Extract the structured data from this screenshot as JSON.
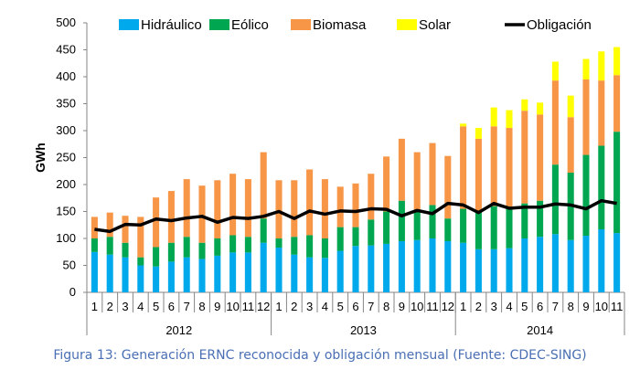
{
  "chart_data": {
    "type": "bar",
    "stacked": true,
    "title": "",
    "xlabel": "",
    "ylabel": "GWh",
    "ylim": [
      0,
      500
    ],
    "yticks": [
      0,
      50,
      100,
      150,
      200,
      250,
      300,
      350,
      400,
      450,
      500
    ],
    "grid": false,
    "legend_position": "top",
    "groups": [
      {
        "label": "2012",
        "months": [
          "1",
          "2",
          "3",
          "4",
          "5",
          "6",
          "7",
          "8",
          "9",
          "10",
          "11",
          "12"
        ]
      },
      {
        "label": "2013",
        "months": [
          "1",
          "2",
          "3",
          "4",
          "5",
          "6",
          "7",
          "8",
          "9",
          "10",
          "11",
          "12"
        ]
      },
      {
        "label": "2014",
        "months": [
          "1",
          "2",
          "3",
          "4",
          "5",
          "6",
          "7",
          "8",
          "9",
          "10",
          "11"
        ]
      }
    ],
    "series": [
      {
        "name": "Hidráulico",
        "color": "#00a9ec",
        "kind": "bar",
        "values": [
          75,
          70,
          65,
          50,
          48,
          57,
          65,
          62,
          68,
          74,
          74,
          92,
          83,
          70,
          65,
          64,
          77,
          86,
          87,
          90,
          95,
          97,
          100,
          95,
          92,
          80,
          80,
          82,
          100,
          103,
          108,
          97,
          105,
          117,
          110
        ]
      },
      {
        "name": "Eólico",
        "color": "#00a650",
        "kind": "bar",
        "values": [
          25,
          33,
          27,
          15,
          36,
          35,
          38,
          30,
          32,
          32,
          29,
          45,
          17,
          33,
          41,
          36,
          44,
          35,
          48,
          60,
          75,
          53,
          62,
          42,
          63,
          70,
          80,
          73,
          65,
          67,
          129,
          125,
          150,
          155,
          188
        ]
      },
      {
        "name": "Biomasa",
        "color": "#f79646",
        "kind": "bar",
        "values": [
          40,
          45,
          50,
          75,
          92,
          96,
          107,
          106,
          108,
          114,
          107,
          123,
          108,
          105,
          122,
          110,
          75,
          81,
          85,
          102,
          115,
          110,
          115,
          116,
          153,
          135,
          148,
          150,
          172,
          160,
          156,
          103,
          140,
          121,
          105
        ]
      },
      {
        "name": "Solar",
        "color": "#ffff00",
        "kind": "bar",
        "values": [
          0,
          0,
          0,
          0,
          0,
          0,
          0,
          0,
          0,
          0,
          0,
          0,
          0,
          0,
          0,
          0,
          0,
          0,
          0,
          0,
          0,
          0,
          0,
          0,
          5,
          20,
          35,
          33,
          21,
          22,
          35,
          40,
          38,
          54,
          52
        ]
      },
      {
        "name": "Obligación",
        "color": "#000000",
        "kind": "line",
        "values": [
          117,
          113,
          126,
          125,
          136,
          133,
          138,
          141,
          130,
          139,
          137,
          141,
          150,
          137,
          151,
          145,
          151,
          150,
          155,
          154,
          142,
          152,
          146,
          165,
          162,
          148,
          165,
          156,
          158,
          158,
          164,
          162,
          155,
          170,
          165
        ]
      }
    ]
  },
  "caption": "Figura 13: Generación ERNC reconocida y obligación mensual (Fuente: CDEC-SING)"
}
